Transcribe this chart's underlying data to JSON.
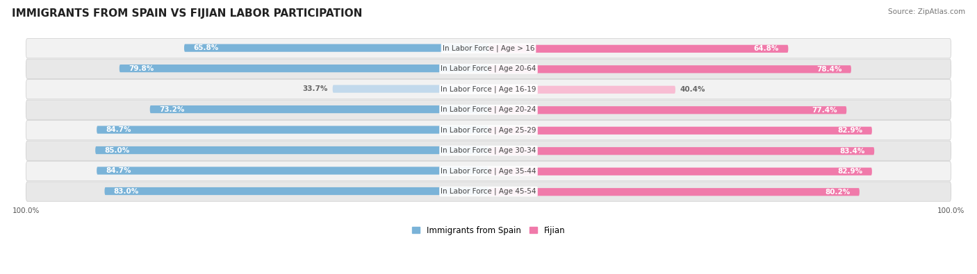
{
  "title": "IMMIGRANTS FROM SPAIN VS FIJIAN LABOR PARTICIPATION",
  "source": "Source: ZipAtlas.com",
  "categories": [
    "In Labor Force | Age > 16",
    "In Labor Force | Age 20-64",
    "In Labor Force | Age 16-19",
    "In Labor Force | Age 20-24",
    "In Labor Force | Age 25-29",
    "In Labor Force | Age 30-34",
    "In Labor Force | Age 35-44",
    "In Labor Force | Age 45-54"
  ],
  "spain_values": [
    65.8,
    79.8,
    33.7,
    73.2,
    84.7,
    85.0,
    84.7,
    83.0
  ],
  "fijian_values": [
    64.8,
    78.4,
    40.4,
    77.4,
    82.9,
    83.4,
    82.9,
    80.2
  ],
  "spain_color": "#7ab3d8",
  "spain_color_light": "#c2d9ec",
  "fijian_color": "#f07aaa",
  "fijian_color_light": "#f8bdd3",
  "row_bg_color_odd": "#f2f2f2",
  "row_bg_color_even": "#e8e8e8",
  "label_color_white": "#ffffff",
  "label_color_dark": "#666666",
  "max_value": 100.0,
  "title_fontsize": 11,
  "label_fontsize": 7.5,
  "category_fontsize": 7.5,
  "legend_fontsize": 8.5,
  "axis_label_fontsize": 7.5
}
